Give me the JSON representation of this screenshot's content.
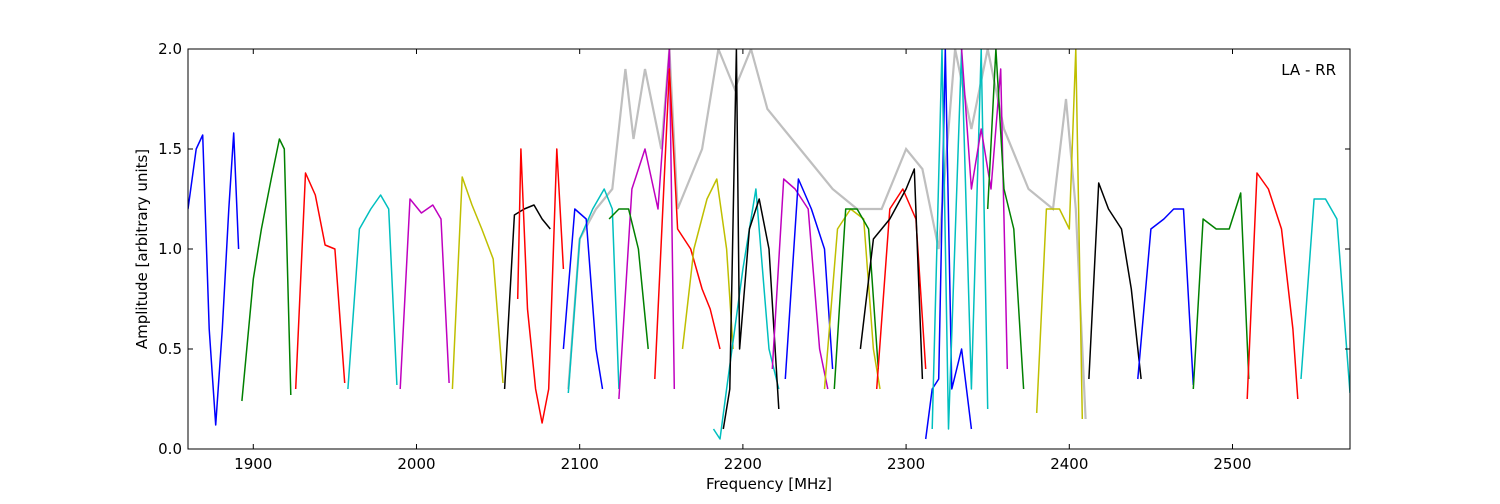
{
  "chart_data": {
    "type": "line",
    "annotation": "LA - RR",
    "xlabel": "Frequency [MHz]",
    "ylabel": "Amplitude [arbitrary units]",
    "xlim": [
      1860,
      2572
    ],
    "ylim": [
      0.0,
      2.0
    ],
    "x_ticks": [
      "1900",
      "2000",
      "2100",
      "2200",
      "2300",
      "2400",
      "2500"
    ],
    "y_ticks": [
      "0.0",
      "0.5",
      "1.0",
      "1.5",
      "2.0"
    ],
    "grid": false,
    "legend": "none",
    "background_color": "#bfbfbf",
    "background_segments": [
      [
        [
          2093,
          0.3
        ],
        [
          2100,
          1.05
        ],
        [
          2110,
          1.2
        ],
        [
          2120,
          1.3
        ],
        [
          2128,
          1.9
        ],
        [
          2133,
          1.55
        ],
        [
          2140,
          1.9
        ],
        [
          2150,
          1.5
        ],
        [
          2155,
          2.0
        ],
        [
          2160,
          1.2
        ],
        [
          2175,
          1.5
        ],
        [
          2185,
          2.0
        ],
        [
          2195,
          1.8
        ],
        [
          2205,
          2.0
        ],
        [
          2215,
          1.7
        ],
        [
          2225,
          1.6
        ],
        [
          2240,
          1.45
        ],
        [
          2255,
          1.3
        ],
        [
          2270,
          1.2
        ],
        [
          2285,
          1.2
        ],
        [
          2300,
          1.5
        ],
        [
          2310,
          1.4
        ],
        [
          2320,
          1.0
        ],
        [
          2330,
          2.0
        ],
        [
          2340,
          1.6
        ],
        [
          2350,
          2.0
        ],
        [
          2360,
          1.6
        ],
        [
          2375,
          1.3
        ],
        [
          2390,
          1.2
        ],
        [
          2398,
          1.75
        ],
        [
          2404,
          1.2
        ],
        [
          2410,
          0.15
        ]
      ]
    ],
    "series_colors": [
      "#0000ff",
      "#008000",
      "#ff0000",
      "#00bfbf",
      "#bf00bf",
      "#bfbf00",
      "#000000"
    ],
    "segments": [
      {
        "color": "#0000ff",
        "points": [
          [
            1860,
            1.2
          ],
          [
            1865,
            1.5
          ],
          [
            1869,
            1.57
          ],
          [
            1873,
            0.6
          ],
          [
            1877,
            0.12
          ],
          [
            1881,
            0.6
          ],
          [
            1885,
            1.2
          ],
          [
            1888,
            1.58
          ],
          [
            1891,
            1.0
          ]
        ]
      },
      {
        "color": "#008000",
        "points": [
          [
            1893,
            0.24
          ],
          [
            1900,
            0.85
          ],
          [
            1905,
            1.1
          ],
          [
            1911,
            1.35
          ],
          [
            1916,
            1.55
          ],
          [
            1919,
            1.5
          ],
          [
            1923,
            0.27
          ]
        ]
      },
      {
        "color": "#ff0000",
        "points": [
          [
            1926,
            0.3
          ],
          [
            1932,
            1.38
          ],
          [
            1938,
            1.27
          ],
          [
            1944,
            1.02
          ],
          [
            1950,
            1.0
          ],
          [
            1956,
            0.33
          ]
        ]
      },
      {
        "color": "#00bfbf",
        "points": [
          [
            1958,
            0.3
          ],
          [
            1965,
            1.1
          ],
          [
            1972,
            1.2
          ],
          [
            1978,
            1.27
          ],
          [
            1983,
            1.2
          ],
          [
            1988,
            0.32
          ]
        ]
      },
      {
        "color": "#bf00bf",
        "points": [
          [
            1990,
            0.3
          ],
          [
            1996,
            1.25
          ],
          [
            2003,
            1.18
          ],
          [
            2010,
            1.22
          ],
          [
            2015,
            1.15
          ],
          [
            2020,
            0.33
          ]
        ]
      },
      {
        "color": "#bfbf00",
        "points": [
          [
            2022,
            0.3
          ],
          [
            2028,
            1.36
          ],
          [
            2034,
            1.22
          ],
          [
            2040,
            1.1
          ],
          [
            2047,
            0.95
          ],
          [
            2053,
            0.33
          ]
        ]
      },
      {
        "color": "#000000",
        "points": [
          [
            2054,
            0.3
          ],
          [
            2060,
            1.17
          ],
          [
            2066,
            1.2
          ],
          [
            2072,
            1.22
          ],
          [
            2077,
            1.15
          ],
          [
            2082,
            1.1
          ]
        ]
      },
      {
        "color": "#ff0000",
        "points": [
          [
            2062,
            0.75
          ],
          [
            2064,
            1.5
          ],
          [
            2068,
            0.7
          ],
          [
            2073,
            0.3
          ],
          [
            2077,
            0.13
          ],
          [
            2081,
            0.3
          ],
          [
            2086,
            1.5
          ],
          [
            2090,
            0.9
          ]
        ]
      },
      {
        "color": "#00bfbf",
        "points": [
          [
            2093,
            0.28
          ],
          [
            2100,
            1.05
          ],
          [
            2108,
            1.2
          ],
          [
            2115,
            1.3
          ],
          [
            2120,
            1.2
          ],
          [
            2124,
            0.3
          ]
        ]
      },
      {
        "color": "#0000ff",
        "points": [
          [
            2090,
            0.5
          ],
          [
            2097,
            1.2
          ],
          [
            2104,
            1.15
          ],
          [
            2110,
            0.5
          ],
          [
            2114,
            0.3
          ]
        ]
      },
      {
        "color": "#bf00bf",
        "points": [
          [
            2124,
            0.25
          ],
          [
            2132,
            1.3
          ],
          [
            2140,
            1.5
          ],
          [
            2148,
            1.2
          ],
          [
            2155,
            2.0
          ],
          [
            2158,
            0.3
          ]
        ]
      },
      {
        "color": "#008000",
        "points": [
          [
            2118,
            1.15
          ],
          [
            2124,
            1.2
          ],
          [
            2130,
            1.2
          ],
          [
            2136,
            1.0
          ],
          [
            2142,
            0.5
          ]
        ]
      },
      {
        "color": "#ff0000",
        "points": [
          [
            2146,
            0.35
          ],
          [
            2155,
            1.9
          ],
          [
            2160,
            1.1
          ],
          [
            2168,
            1.0
          ],
          [
            2175,
            0.8
          ],
          [
            2180,
            0.7
          ],
          [
            2186,
            0.5
          ]
        ]
      },
      {
        "color": "#bfbf00",
        "points": [
          [
            2163,
            0.5
          ],
          [
            2170,
            1.0
          ],
          [
            2178,
            1.25
          ],
          [
            2184,
            1.35
          ],
          [
            2190,
            1.0
          ],
          [
            2194,
            0.5
          ]
        ]
      },
      {
        "color": "#00bfbf",
        "points": [
          [
            2182,
            0.1
          ],
          [
            2186,
            0.05
          ],
          [
            2190,
            0.3
          ],
          [
            2200,
            0.9
          ],
          [
            2208,
            1.3
          ],
          [
            2216,
            0.5
          ],
          [
            2222,
            0.3
          ]
        ]
      },
      {
        "color": "#000000",
        "points": [
          [
            2188,
            0.1
          ],
          [
            2192,
            0.3
          ],
          [
            2196,
            2.0
          ],
          [
            2198,
            0.5
          ],
          [
            2204,
            1.1
          ],
          [
            2210,
            1.25
          ],
          [
            2216,
            1.0
          ],
          [
            2222,
            0.2
          ]
        ]
      },
      {
        "color": "#bf00bf",
        "points": [
          [
            2218,
            0.4
          ],
          [
            2225,
            1.35
          ],
          [
            2232,
            1.3
          ],
          [
            2240,
            1.2
          ],
          [
            2247,
            0.5
          ],
          [
            2252,
            0.3
          ]
        ]
      },
      {
        "color": "#0000ff",
        "points": [
          [
            2226,
            0.35
          ],
          [
            2234,
            1.35
          ],
          [
            2242,
            1.2
          ],
          [
            2250,
            1.0
          ],
          [
            2255,
            0.4
          ]
        ]
      },
      {
        "color": "#bfbf00",
        "points": [
          [
            2250,
            0.3
          ],
          [
            2258,
            1.1
          ],
          [
            2266,
            1.2
          ],
          [
            2274,
            1.15
          ],
          [
            2280,
            0.5
          ],
          [
            2284,
            0.3
          ]
        ]
      },
      {
        "color": "#008000",
        "points": [
          [
            2256,
            0.3
          ],
          [
            2263,
            1.2
          ],
          [
            2270,
            1.2
          ],
          [
            2277,
            1.1
          ],
          [
            2283,
            0.4
          ]
        ]
      },
      {
        "color": "#ff0000",
        "points": [
          [
            2282,
            0.3
          ],
          [
            2290,
            1.2
          ],
          [
            2298,
            1.3
          ],
          [
            2306,
            1.15
          ],
          [
            2312,
            0.4
          ]
        ]
      },
      {
        "color": "#000000",
        "points": [
          [
            2272,
            0.5
          ],
          [
            2280,
            1.05
          ],
          [
            2290,
            1.15
          ],
          [
            2300,
            1.3
          ],
          [
            2305,
            1.4
          ],
          [
            2310,
            0.35
          ]
        ]
      },
      {
        "color": "#0000ff",
        "points": [
          [
            2312,
            0.05
          ],
          [
            2316,
            0.3
          ],
          [
            2320,
            0.35
          ],
          [
            2324,
            2.0
          ],
          [
            2328,
            0.3
          ],
          [
            2334,
            0.5
          ],
          [
            2340,
            0.1
          ]
        ]
      },
      {
        "color": "#00bfbf",
        "points": [
          [
            2316,
            0.1
          ],
          [
            2322,
            2.0
          ],
          [
            2326,
            0.1
          ],
          [
            2334,
            2.0
          ],
          [
            2340,
            0.3
          ],
          [
            2346,
            2.0
          ],
          [
            2350,
            0.2
          ]
        ]
      },
      {
        "color": "#bf00bf",
        "points": [
          [
            2334,
            2.0
          ],
          [
            2340,
            1.3
          ],
          [
            2346,
            1.6
          ],
          [
            2352,
            1.3
          ],
          [
            2358,
            1.9
          ],
          [
            2362,
            0.4
          ]
        ]
      },
      {
        "color": "#008000",
        "points": [
          [
            2350,
            1.2
          ],
          [
            2355,
            2.0
          ],
          [
            2360,
            1.3
          ],
          [
            2366,
            1.1
          ],
          [
            2372,
            0.3
          ]
        ]
      },
      {
        "color": "#bfbf00",
        "points": [
          [
            2380,
            0.18
          ],
          [
            2386,
            1.2
          ],
          [
            2394,
            1.2
          ],
          [
            2400,
            1.1
          ],
          [
            2404,
            2.0
          ],
          [
            2408,
            0.15
          ]
        ]
      },
      {
        "color": "#000000",
        "points": [
          [
            2412,
            0.35
          ],
          [
            2418,
            1.33
          ],
          [
            2424,
            1.2
          ],
          [
            2432,
            1.1
          ],
          [
            2438,
            0.8
          ],
          [
            2444,
            0.35
          ]
        ]
      },
      {
        "color": "#0000ff",
        "points": [
          [
            2442,
            0.35
          ],
          [
            2450,
            1.1
          ],
          [
            2458,
            1.15
          ],
          [
            2464,
            1.2
          ],
          [
            2470,
            1.2
          ],
          [
            2476,
            0.32
          ]
        ]
      },
      {
        "color": "#008000",
        "points": [
          [
            2476,
            0.3
          ],
          [
            2482,
            1.15
          ],
          [
            2490,
            1.1
          ],
          [
            2498,
            1.1
          ],
          [
            2505,
            1.28
          ],
          [
            2510,
            0.35
          ]
        ]
      },
      {
        "color": "#ff0000",
        "points": [
          [
            2509,
            0.25
          ],
          [
            2515,
            1.38
          ],
          [
            2522,
            1.3
          ],
          [
            2530,
            1.1
          ],
          [
            2537,
            0.6
          ],
          [
            2540,
            0.25
          ]
        ]
      },
      {
        "color": "#00bfbf",
        "points": [
          [
            2542,
            0.35
          ],
          [
            2550,
            1.25
          ],
          [
            2557,
            1.25
          ],
          [
            2564,
            1.15
          ],
          [
            2572,
            0.28
          ]
        ]
      }
    ]
  }
}
